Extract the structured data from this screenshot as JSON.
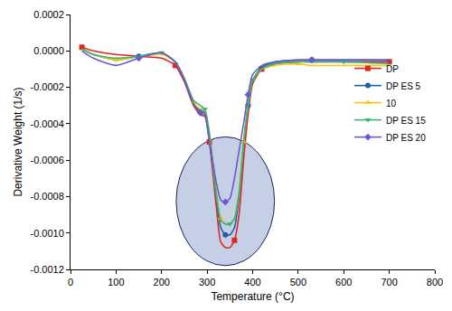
{
  "chart_data": {
    "type": "line",
    "x_label": "Temperature (°C)",
    "y_label": "Derivative Weight (1/s)",
    "x": [
      25,
      50,
      100,
      150,
      200,
      230,
      250,
      270,
      285,
      295,
      305,
      320,
      330,
      340,
      350,
      360,
      370,
      380,
      390,
      400,
      420,
      450,
      500,
      530,
      600,
      700
    ],
    "series": [
      {
        "name": "DP",
        "color": "#e0261e",
        "marker": "square",
        "values": [
          2e-05,
          0.0,
          -2e-05,
          -3e-05,
          -4e-05,
          -8e-05,
          -0.00017,
          -0.0003,
          -0.00035,
          -0.00036,
          -0.0005,
          -0.00085,
          -0.00105,
          -0.00108,
          -0.00108,
          -0.00104,
          -0.0009,
          -0.0006,
          -0.00035,
          -0.00018,
          -0.0001,
          -7e-05,
          -6e-05,
          -6e-05,
          -6e-05,
          -6e-05
        ]
      },
      {
        "name": "DP ES 5",
        "color": "#1f5fa8",
        "marker": "circle",
        "values": [
          1e-05,
          -2e-05,
          -5e-05,
          -3e-05,
          -1e-05,
          -6e-05,
          -0.00016,
          -0.00029,
          -0.00033,
          -0.00034,
          -0.00048,
          -0.0008,
          -0.00097,
          -0.00101,
          -0.00101,
          -0.00097,
          -0.0008,
          -0.00052,
          -0.0003,
          -0.00016,
          -9e-05,
          -6e-05,
          -5e-05,
          -5e-05,
          -5e-05,
          -5e-05
        ]
      },
      {
        "name": "10",
        "color": "#f5c518",
        "marker": "triangle-up",
        "values": [
          1e-05,
          -2e-05,
          -5e-05,
          -3e-05,
          -2e-05,
          -6e-05,
          -0.00015,
          -0.00028,
          -0.00032,
          -0.00033,
          -0.00046,
          -0.00078,
          -0.00092,
          -0.00095,
          -0.00095,
          -0.00092,
          -0.00078,
          -0.0005,
          -0.0003,
          -0.00016,
          -0.0001,
          -8e-05,
          -7e-05,
          -8e-05,
          -8e-05,
          -8e-05
        ]
      },
      {
        "name": "DP ES 15",
        "color": "#3cb371",
        "marker": "triangle-down",
        "values": [
          1e-05,
          -2e-05,
          -4e-05,
          -3e-05,
          -1e-05,
          -6e-05,
          -0.00015,
          -0.00027,
          -0.0003,
          -0.00032,
          -0.00045,
          -0.00078,
          -0.00093,
          -0.00095,
          -0.00095,
          -0.00092,
          -0.00078,
          -0.0005,
          -0.0003,
          -0.00016,
          -0.0001,
          -7e-05,
          -6e-05,
          -6e-05,
          -6e-05,
          -7e-05
        ]
      },
      {
        "name": "DP ES 20",
        "color": "#6a5acd",
        "marker": "diamond",
        "values": [
          0.0,
          -4e-05,
          -8e-05,
          -4e-05,
          -1e-05,
          -6e-05,
          -0.00016,
          -0.00029,
          -0.00034,
          -0.00035,
          -0.0005,
          -0.00072,
          -0.00082,
          -0.00083,
          -0.00081,
          -0.0007,
          -0.00055,
          -0.0004,
          -0.00024,
          -0.00013,
          -8e-05,
          -6e-05,
          -5e-05,
          -5e-05,
          -5e-05,
          -5e-05
        ]
      }
    ],
    "xlim": [
      0,
      800
    ],
    "xticks": [
      0,
      100,
      200,
      300,
      400,
      500,
      600,
      700,
      800
    ],
    "ylim": [
      -0.0012,
      0.0002
    ],
    "yticks": [
      -0.0012,
      {
        "value": -0.001,
        "label": "-0.0010"
      },
      -0.0008,
      -0.0006,
      -0.0004,
      -0.0002,
      {
        "value": 0,
        "label": "0.0000"
      },
      0.0002
    ],
    "grid": false,
    "legend": "upper right"
  }
}
